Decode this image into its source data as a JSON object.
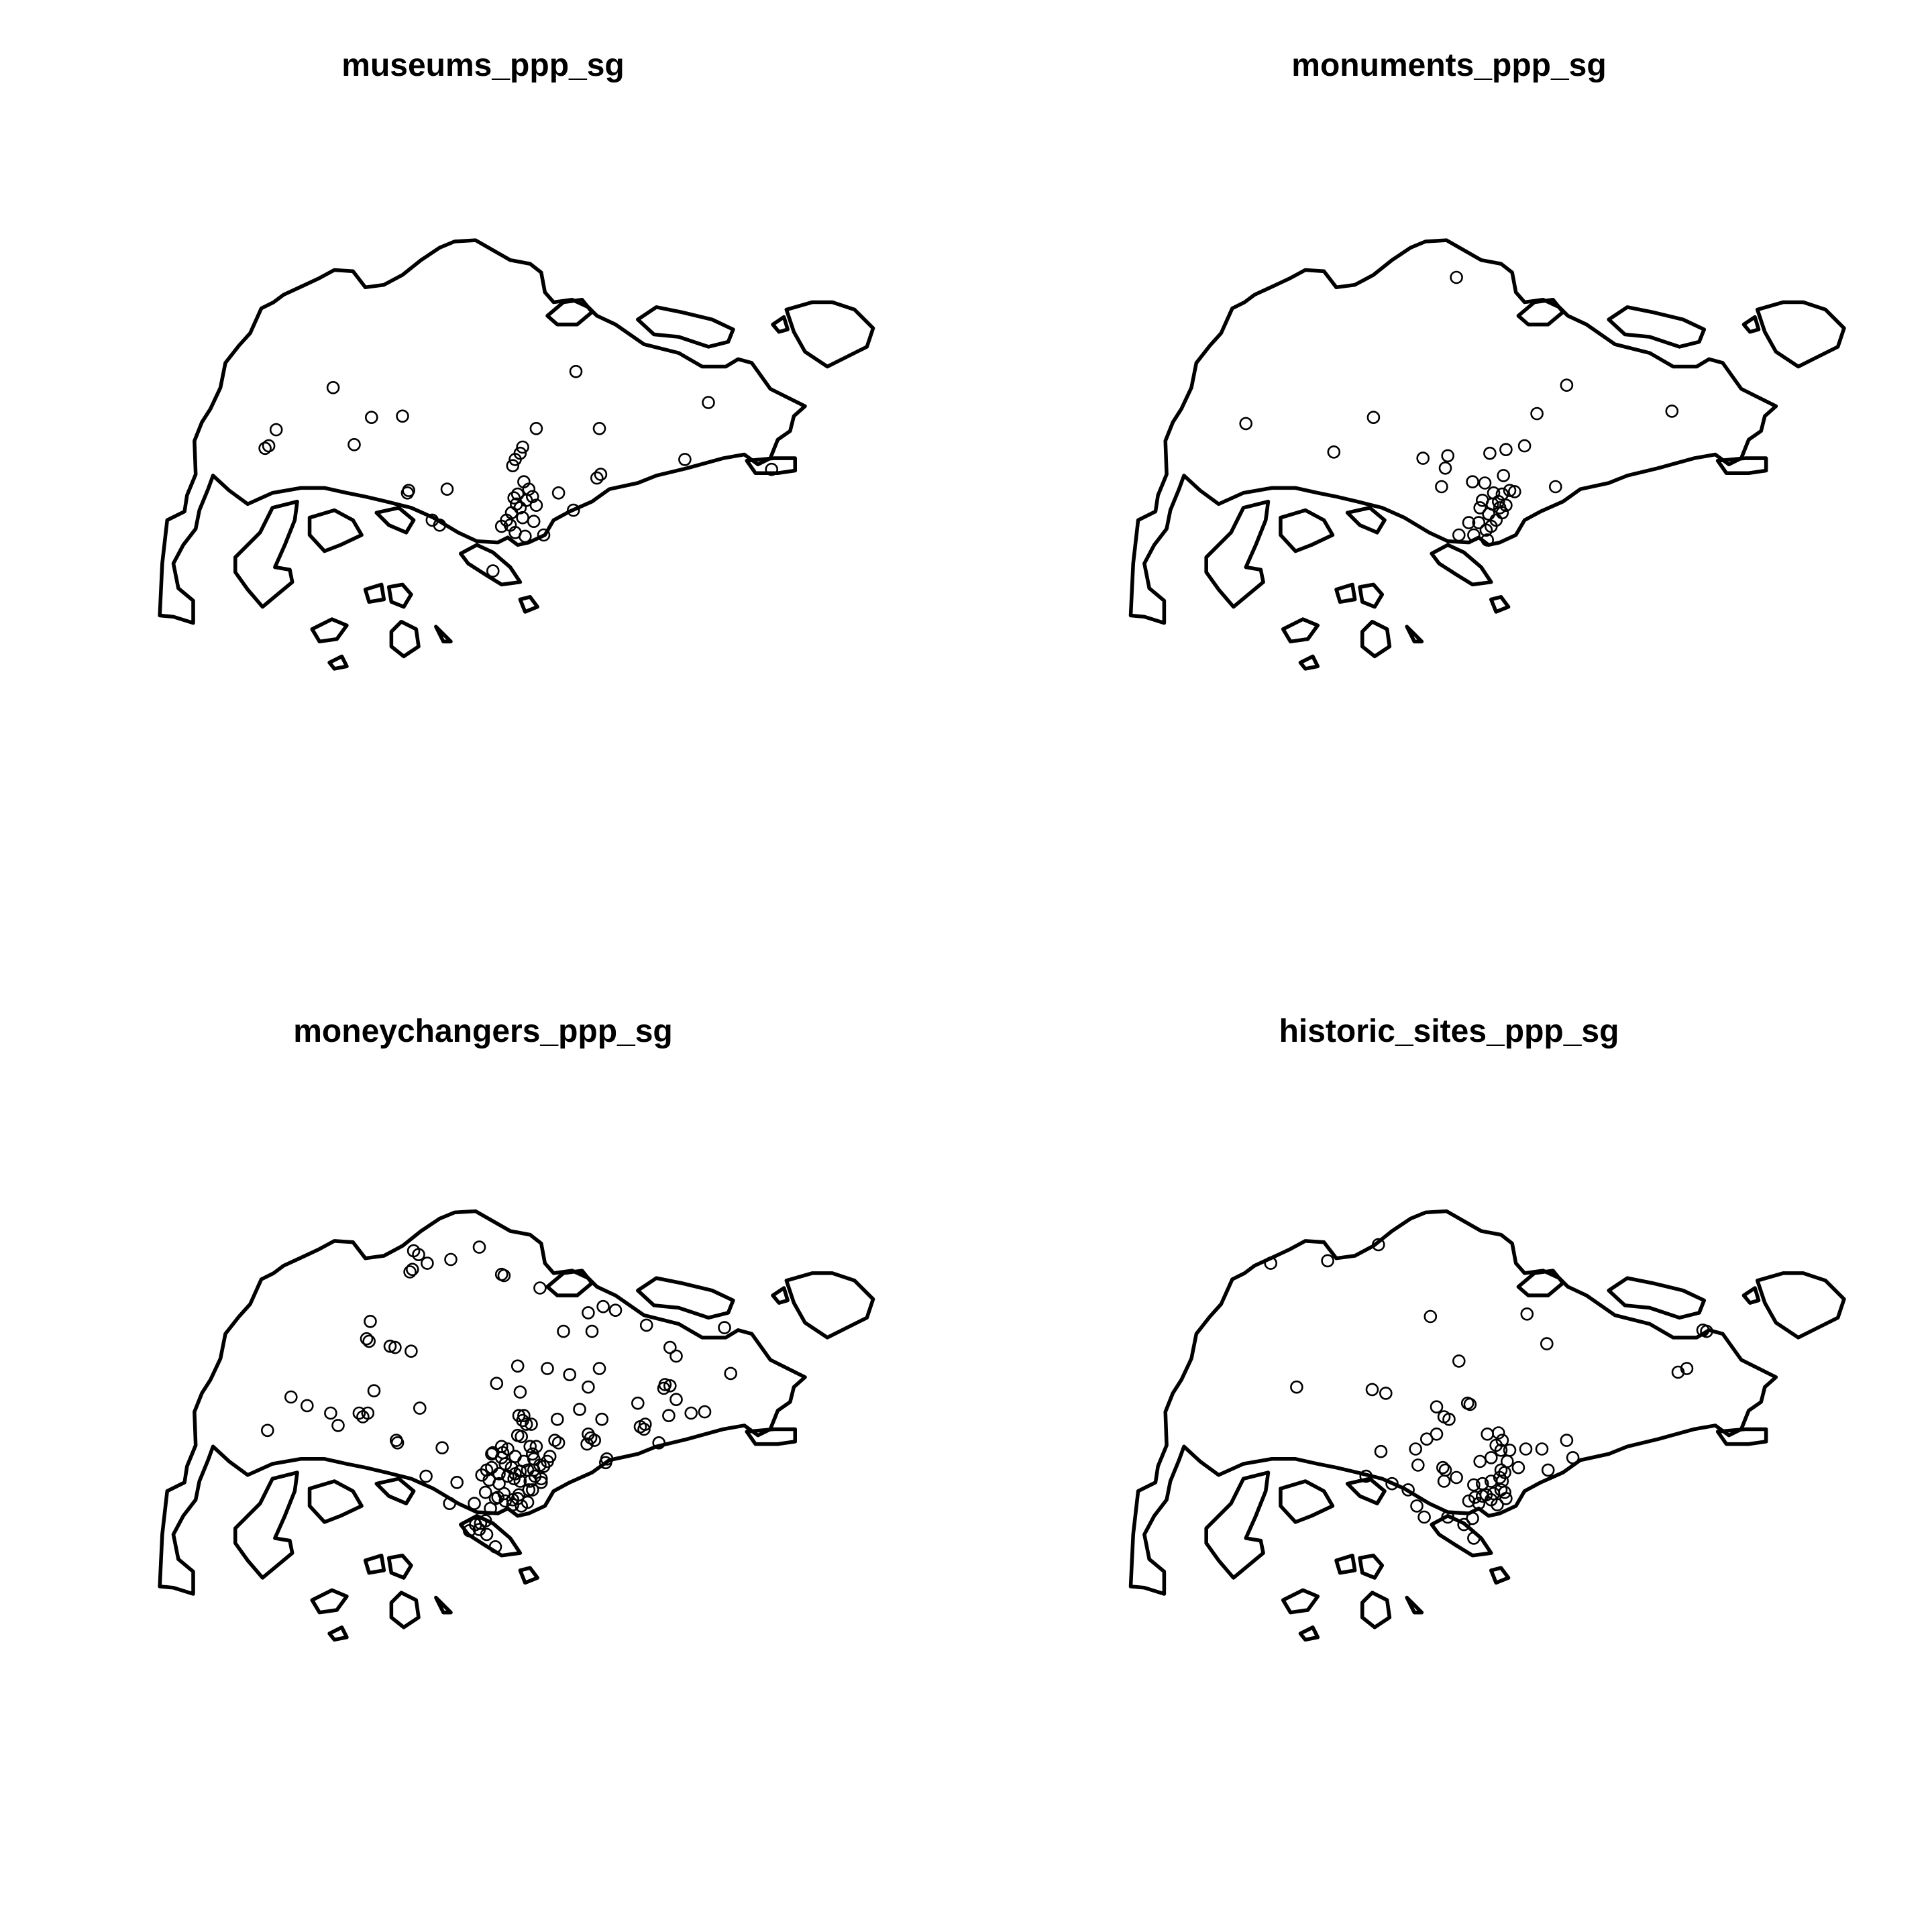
{
  "figure": {
    "panels": [
      {
        "title": "museums_ppp_sg",
        "points": [
          [
            269,
            313
          ],
          [
            223,
            347
          ],
          [
            217,
            360
          ],
          [
            214,
            362
          ],
          [
            300,
            337
          ],
          [
            325,
            336
          ],
          [
            286,
            359
          ],
          [
            465,
            300
          ],
          [
            484,
            346
          ],
          [
            433,
            346
          ],
          [
            330,
            396
          ],
          [
            361,
            395
          ],
          [
            422,
            361
          ],
          [
            420,
            366
          ],
          [
            416,
            371
          ],
          [
            414,
            376
          ],
          [
            423,
            389
          ],
          [
            418,
            399
          ],
          [
            427,
            395
          ],
          [
            430,
            401
          ],
          [
            415,
            402
          ],
          [
            417,
            407
          ],
          [
            420,
            410
          ],
          [
            425,
            404
          ],
          [
            433,
            408
          ],
          [
            413,
            414
          ],
          [
            409,
            420
          ],
          [
            405,
            425
          ],
          [
            412,
            424
          ],
          [
            422,
            418
          ],
          [
            431,
            421
          ],
          [
            439,
            432
          ],
          [
            424,
            433
          ],
          [
            416,
            430
          ],
          [
            451,
            398
          ],
          [
            482,
            386
          ],
          [
            485,
            383
          ],
          [
            463,
            412
          ],
          [
            553,
            371
          ],
          [
            572,
            325
          ],
          [
            623,
            379
          ],
          [
            349,
            420
          ],
          [
            355,
            424
          ],
          [
            398,
            461
          ],
          [
            329,
            398
          ]
        ]
      },
      {
        "title": "monuments_ppp_sg",
        "points": [
          [
            1176,
            224
          ],
          [
            1265,
            311
          ],
          [
            1350,
            332
          ],
          [
            1006,
            342
          ],
          [
            1109,
            337
          ],
          [
            1077,
            365
          ],
          [
            1241,
            334
          ],
          [
            1149,
            370
          ],
          [
            1169,
            368
          ],
          [
            1167,
            378
          ],
          [
            1203,
            366
          ],
          [
            1216,
            363
          ],
          [
            1231,
            360
          ],
          [
            1189,
            389
          ],
          [
            1199,
            390
          ],
          [
            1214,
            384
          ],
          [
            1206,
            398
          ],
          [
            1197,
            404
          ],
          [
            1213,
            399
          ],
          [
            1219,
            396
          ],
          [
            1223,
            397
          ],
          [
            1211,
            410
          ],
          [
            1202,
            415
          ],
          [
            1195,
            410
          ],
          [
            1208,
            420
          ],
          [
            1204,
            425
          ],
          [
            1200,
            428
          ],
          [
            1213,
            414
          ],
          [
            1216,
            408
          ],
          [
            1194,
            422
          ],
          [
            1186,
            422
          ],
          [
            1178,
            432
          ],
          [
            1190,
            432
          ],
          [
            1164,
            393
          ],
          [
            1256,
            393
          ],
          [
            1201,
            436
          ],
          [
            1210,
            405
          ],
          [
            1205,
            407
          ]
        ]
      },
      {
        "title": "moneychangers_ppp_sg",
        "points": [
          [
            334,
            1010
          ],
          [
            338,
            1013
          ],
          [
            345,
            1020
          ],
          [
            331,
            1027
          ],
          [
            333,
            1025
          ],
          [
            364,
            1017
          ],
          [
            387,
            1007
          ],
          [
            405,
            1029
          ],
          [
            407,
            1030
          ],
          [
            436,
            1040
          ],
          [
            455,
            1075
          ],
          [
            478,
            1075
          ],
          [
            475,
            1060
          ],
          [
            487,
            1055
          ],
          [
            497,
            1058
          ],
          [
            522,
            1070
          ],
          [
            585,
            1072
          ],
          [
            546,
            1095
          ],
          [
            541,
            1088
          ],
          [
            299,
            1067
          ],
          [
            296,
            1081
          ],
          [
            298,
            1083
          ],
          [
            315,
            1087
          ],
          [
            319,
            1088
          ],
          [
            332,
            1091
          ],
          [
            235,
            1128
          ],
          [
            248,
            1135
          ],
          [
            267,
            1141
          ],
          [
            290,
            1141
          ],
          [
            293,
            1144
          ],
          [
            297,
            1141
          ],
          [
            273,
            1151
          ],
          [
            216,
            1155
          ],
          [
            302,
            1123
          ],
          [
            339,
            1137
          ],
          [
            321,
            1165
          ],
          [
            320,
            1163
          ],
          [
            357,
            1169
          ],
          [
            401,
            1117
          ],
          [
            418,
            1103
          ],
          [
            442,
            1105
          ],
          [
            460,
            1110
          ],
          [
            475,
            1120
          ],
          [
            484,
            1105
          ],
          [
            515,
            1133
          ],
          [
            537,
            1118
          ],
          [
            536,
            1121
          ],
          [
            541,
            1119
          ],
          [
            546,
            1130
          ],
          [
            540,
            1143
          ],
          [
            558,
            1141
          ],
          [
            569,
            1140
          ],
          [
            517,
            1152
          ],
          [
            520,
            1154
          ],
          [
            521,
            1150
          ],
          [
            486,
            1146
          ],
          [
            468,
            1138
          ],
          [
            450,
            1146
          ],
          [
            451,
            1165
          ],
          [
            448,
            1163
          ],
          [
            477,
            1161
          ],
          [
            475,
            1158
          ],
          [
            480,
            1163
          ],
          [
            474,
            1166
          ],
          [
            490,
            1178
          ],
          [
            489,
            1181
          ],
          [
            532,
            1165
          ],
          [
            590,
            1109
          ],
          [
            420,
            1124
          ],
          [
            423,
            1143
          ],
          [
            419,
            1143
          ],
          [
            422,
            1147
          ],
          [
            425,
            1150
          ],
          [
            429,
            1150
          ],
          [
            421,
            1160
          ],
          [
            418,
            1159
          ],
          [
            428,
            1168
          ],
          [
            433,
            1168
          ],
          [
            430,
            1174
          ],
          [
            431,
            1178
          ],
          [
            442,
            1180
          ],
          [
            444,
            1176
          ],
          [
            439,
            1184
          ],
          [
            431,
            1187
          ],
          [
            426,
            1187
          ],
          [
            420,
            1188
          ],
          [
            416,
            1190
          ],
          [
            415,
            1194
          ],
          [
            420,
            1196
          ],
          [
            428,
            1196
          ],
          [
            432,
            1192
          ],
          [
            437,
            1194
          ],
          [
            437,
            1197
          ],
          [
            430,
            1203
          ],
          [
            427,
            1203
          ],
          [
            419,
            1207
          ],
          [
            418,
            1210
          ],
          [
            421,
            1216
          ],
          [
            426,
            1213
          ],
          [
            414,
            1215
          ],
          [
            414,
            1211
          ],
          [
            408,
            1212
          ],
          [
            407,
            1206
          ],
          [
            402,
            1209
          ],
          [
            400,
            1210
          ],
          [
            403,
            1198
          ],
          [
            410,
            1192
          ],
          [
            413,
            1185
          ],
          [
            408,
            1182
          ],
          [
            405,
            1177
          ],
          [
            406,
            1173
          ],
          [
            398,
            1173
          ],
          [
            397,
            1174
          ],
          [
            397,
            1185
          ],
          [
            393,
            1187
          ],
          [
            389,
            1191
          ],
          [
            395,
            1195
          ],
          [
            403,
            1190
          ],
          [
            410,
            1170
          ],
          [
            405,
            1168
          ],
          [
            416,
            1176
          ],
          [
            423,
            1180
          ],
          [
            436,
            1183
          ],
          [
            392,
            1205
          ],
          [
            396,
            1218
          ],
          [
            392,
            1228
          ],
          [
            388,
            1230
          ],
          [
            384,
            1231
          ],
          [
            379,
            1236
          ],
          [
            387,
            1235
          ],
          [
            393,
            1239
          ],
          [
            400,
            1249
          ],
          [
            383,
            1214
          ],
          [
            363,
            1214
          ],
          [
            369,
            1197
          ],
          [
            344,
            1192
          ]
        ]
      },
      {
        "title": "historic_sites_ppp_sg",
        "points": [
          [
            1026,
            1020
          ],
          [
            1072,
            1018
          ],
          [
            1113,
            1005
          ],
          [
            1155,
            1063
          ],
          [
            1233,
            1061
          ],
          [
            1249,
            1085
          ],
          [
            1178,
            1099
          ],
          [
            1047,
            1120
          ],
          [
            1108,
            1122
          ],
          [
            1119,
            1125
          ],
          [
            1160,
            1136
          ],
          [
            1166,
            1144
          ],
          [
            1185,
            1133
          ],
          [
            1187,
            1134
          ],
          [
            1170,
            1146
          ],
          [
            1160,
            1158
          ],
          [
            1152,
            1162
          ],
          [
            1143,
            1170
          ],
          [
            1115,
            1172
          ],
          [
            1201,
            1158
          ],
          [
            1213,
            1163
          ],
          [
            1208,
            1167
          ],
          [
            1195,
            1180
          ],
          [
            1204,
            1177
          ],
          [
            1212,
            1171
          ],
          [
            1219,
            1171
          ],
          [
            1232,
            1170
          ],
          [
            1245,
            1170
          ],
          [
            1265,
            1163
          ],
          [
            1270,
            1177
          ],
          [
            1250,
            1187
          ],
          [
            1226,
            1185
          ],
          [
            1217,
            1180
          ],
          [
            1215,
            1189
          ],
          [
            1212,
            1187
          ],
          [
            1211,
            1193
          ],
          [
            1204,
            1196
          ],
          [
            1197,
            1198
          ],
          [
            1200,
            1207
          ],
          [
            1206,
            1206
          ],
          [
            1212,
            1203
          ],
          [
            1213,
            1196
          ],
          [
            1216,
            1210
          ],
          [
            1204,
            1211
          ],
          [
            1197,
            1208
          ],
          [
            1194,
            1214
          ],
          [
            1191,
            1209
          ],
          [
            1190,
            1199
          ],
          [
            1186,
            1212
          ],
          [
            1209,
            1215
          ],
          [
            1215,
            1205
          ],
          [
            1165,
            1185
          ],
          [
            1167,
            1187
          ],
          [
            1176,
            1193
          ],
          [
            1166,
            1196
          ],
          [
            1145,
            1183
          ],
          [
            1137,
            1203
          ],
          [
            1124,
            1198
          ],
          [
            1103,
            1192
          ],
          [
            1144,
            1216
          ],
          [
            1189,
            1226
          ],
          [
            1182,
            1231
          ],
          [
            1169,
            1225
          ],
          [
            1150,
            1225
          ],
          [
            1190,
            1242
          ],
          [
            1375,
            1074
          ],
          [
            1378,
            1075
          ],
          [
            1355,
            1108
          ],
          [
            1362,
            1105
          ],
          [
            1210,
            1157
          ]
        ]
      }
    ]
  }
}
